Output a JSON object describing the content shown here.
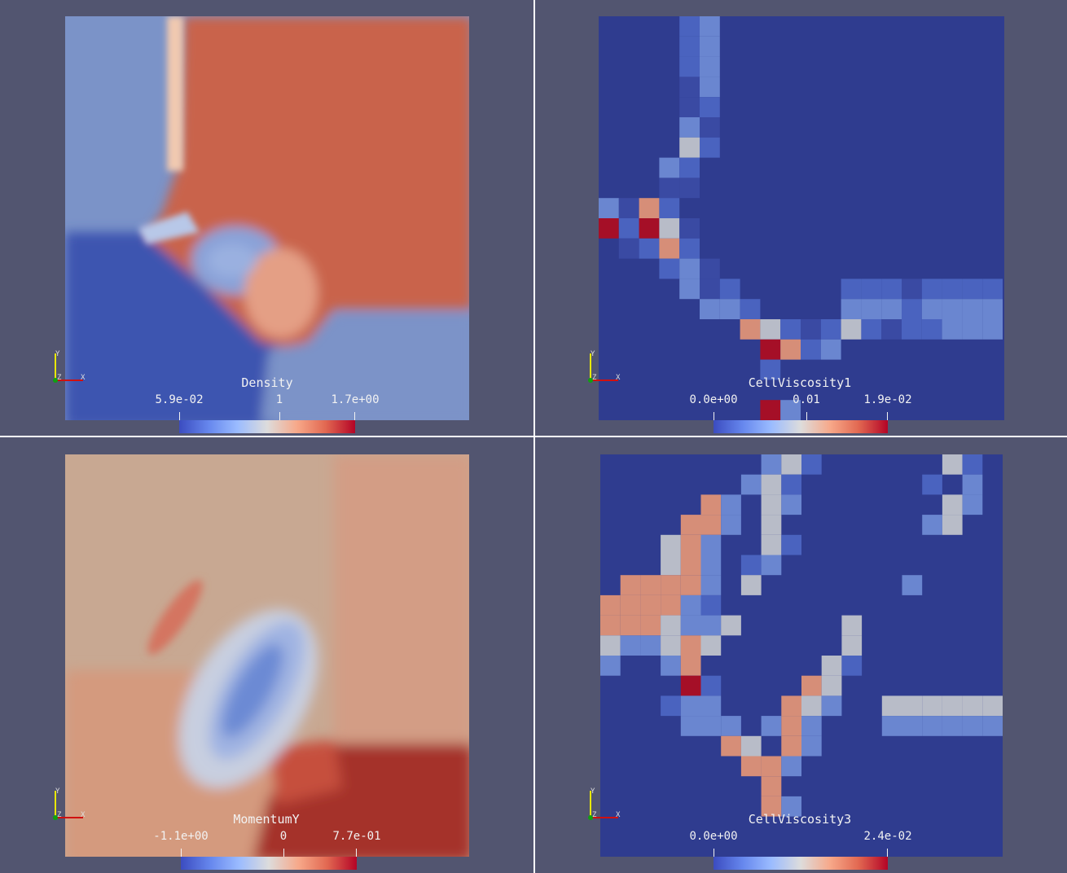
{
  "views": [
    {
      "id": "density",
      "title": "Density",
      "ticks": [
        "5.9e-02",
        "1",
        "1.7e+00"
      ],
      "axes": {
        "y": "Y",
        "z": "Z",
        "x": "X"
      }
    },
    {
      "id": "cellviscosity1",
      "title": "CellViscosity1",
      "ticks": [
        "0.0e+00",
        "0.01",
        "1.9e-02"
      ],
      "axes": {
        "y": "Y",
        "z": "Z",
        "x": "X"
      }
    },
    {
      "id": "momentumy",
      "title": "MomentumY",
      "ticks": [
        "-1.1e+00",
        "0",
        "7.7e-01"
      ],
      "axes": {
        "y": "Y",
        "z": "Z",
        "x": "X"
      }
    },
    {
      "id": "cellviscosity3",
      "title": "CellViscosity3",
      "ticks": [
        "0.0e+00",
        "2.4e-02"
      ],
      "axes": {
        "y": "Y",
        "z": "Z",
        "x": "X"
      }
    }
  ],
  "colors": {
    "background": "#525570",
    "divider": "#ffffff",
    "low": "#3b4cc0",
    "mid": "#dddcdc",
    "high": "#b40426"
  }
}
